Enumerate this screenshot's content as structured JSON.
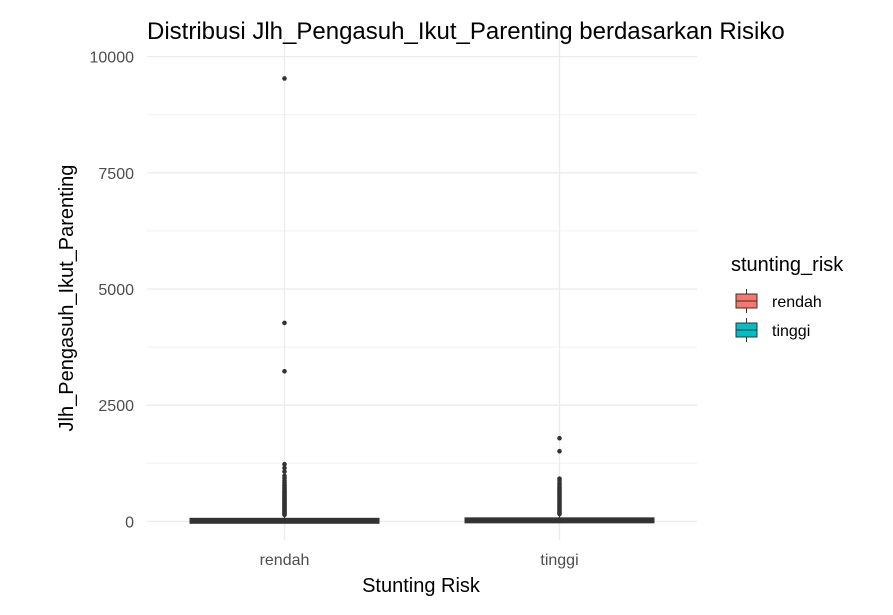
{
  "chart_data": {
    "type": "boxplot",
    "title": "Distribusi Jlh_Pengasuh_Ikut_Parenting berdasarkan Risiko",
    "xlabel": "Stunting Risk",
    "ylabel": "Jlh_Pengasuh_Ikut_Parenting",
    "categories": [
      "rendah",
      "tinggi"
    ],
    "ylim": [
      -400,
      10400
    ],
    "yticks": [
      0,
      2500,
      5000,
      7500,
      10000
    ],
    "grid": true,
    "legend": {
      "title": "stunting_risk",
      "position": "right",
      "entries": [
        {
          "label": "rendah",
          "color": "#F8766D"
        },
        {
          "label": "tinggi",
          "color": "#00BFC4"
        }
      ]
    },
    "series": [
      {
        "category": "rendah",
        "box": {
          "min": 0,
          "q1": 5,
          "median": 15,
          "q3": 45,
          "max": 120
        },
        "outliers": [
          9530,
          4270,
          3230,
          1230,
          1150,
          1070,
          980,
          930,
          880,
          840,
          800,
          770,
          740,
          710,
          690,
          660,
          640,
          620,
          600,
          580,
          560,
          540,
          520,
          500,
          480,
          460,
          440,
          420,
          400,
          380,
          360,
          340,
          320,
          300,
          280,
          260,
          240,
          220,
          200,
          180,
          160,
          140
        ]
      },
      {
        "category": "tinggi",
        "box": {
          "min": 0,
          "q1": 8,
          "median": 20,
          "q3": 55,
          "max": 140
        },
        "outliers": [
          1790,
          1510,
          920,
          880,
          830,
          790,
          750,
          720,
          690,
          660,
          630,
          600,
          570,
          540,
          510,
          480,
          450,
          420,
          390,
          360,
          330,
          300,
          270,
          240,
          210,
          180,
          160
        ]
      }
    ]
  }
}
